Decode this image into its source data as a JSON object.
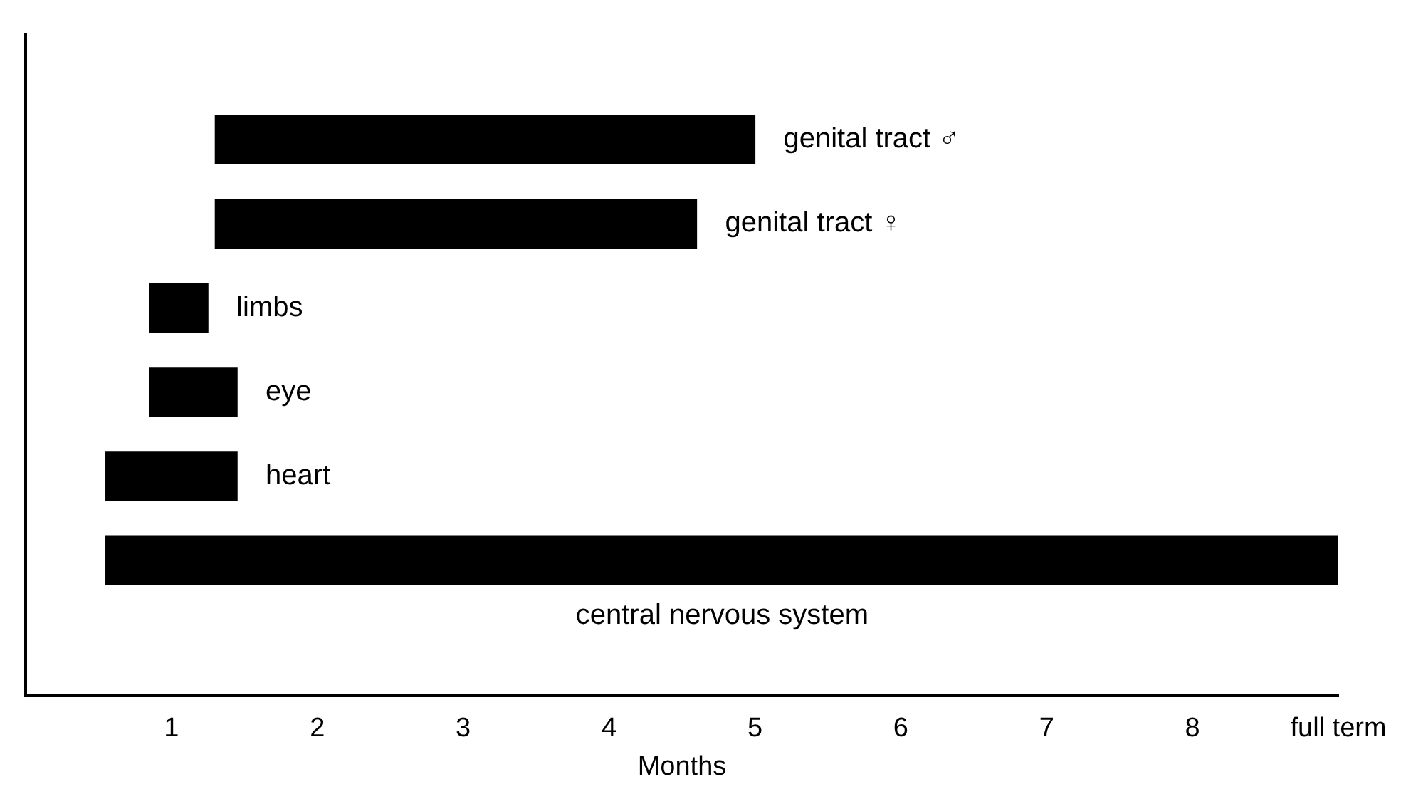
{
  "chart_data": {
    "type": "bar",
    "orientation": "horizontal",
    "xlabel": "Months",
    "categories": [
      "genital tract ♂",
      "genital tract ♀",
      "limbs",
      "eye",
      "heart",
      "central nervous system"
    ],
    "base": [
      1.3,
      1.3,
      0.85,
      0.85,
      0.55,
      0.55
    ],
    "values": [
      3.7,
      3.3,
      0.4,
      0.6,
      0.9,
      8.45
    ],
    "color": "#000000",
    "xlim": [
      0,
      9
    ],
    "xticks": [
      1,
      2,
      3,
      4,
      5,
      6,
      7,
      8,
      {
        "value": 9,
        "label": "full term"
      }
    ],
    "tick_labels": "x",
    "grid": false,
    "legend": false
  }
}
